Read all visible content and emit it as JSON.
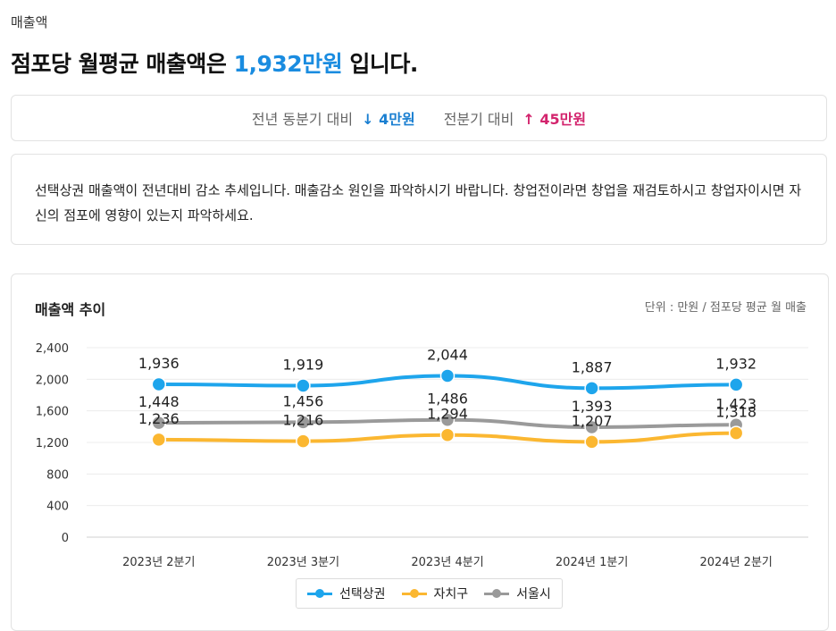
{
  "header": {
    "section_label": "매출액",
    "headline_prefix": "점포당 월평균 매출액은 ",
    "headline_value": "1,932만원",
    "headline_suffix": " 입니다."
  },
  "comparison": {
    "yoy_label": "전년 동분기 대비",
    "yoy_arrow": "↓",
    "yoy_value": "4만원",
    "qoq_label": "전분기 대비",
    "qoq_arrow": "↑",
    "qoq_value": "45만원"
  },
  "message": "선택상권 매출액이 전년대비 감소 추세입니다. 매출감소 원인을 파악하시기 바랍니다. 창업전이라면 창업을 재검토하시고 창업자이시면 자신의 점포에 영향이 있는지 파악하세요.",
  "chart_data": {
    "type": "line",
    "title": "매출액 추이",
    "unit_note": "단위 : 만원 / 점포당 평균 월 매출",
    "categories": [
      "2023년 2분기",
      "2023년 3분기",
      "2023년 4분기",
      "2024년 1분기",
      "2024년 2분기"
    ],
    "ylim": [
      0,
      2400
    ],
    "yticks": [
      0,
      400,
      800,
      1200,
      1600,
      2000,
      2400
    ],
    "ytick_labels": [
      "0",
      "400",
      "800",
      "1,200",
      "1,600",
      "2,000",
      "2,400"
    ],
    "series": [
      {
        "name": "선택상권",
        "color": "#1ea5ec",
        "values": [
          1936,
          1919,
          2044,
          1887,
          1932
        ],
        "labels": [
          "1,936",
          "1,919",
          "2,044",
          "1,887",
          "1,932"
        ]
      },
      {
        "name": "자치구",
        "color": "#fbb731",
        "values": [
          1236,
          1216,
          1294,
          1207,
          1318
        ],
        "labels": [
          "1,236",
          "1,216",
          "1,294",
          "1,207",
          "1,318"
        ]
      },
      {
        "name": "서울시",
        "color": "#9a9a9a",
        "values": [
          1448,
          1456,
          1486,
          1393,
          1423
        ],
        "labels": [
          "1,448",
          "1,456",
          "1,486",
          "1,393",
          "1,423"
        ]
      }
    ],
    "legend_position": "bottom-center",
    "grid": true
  }
}
